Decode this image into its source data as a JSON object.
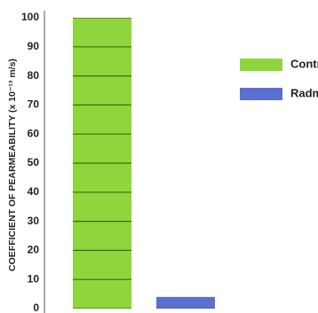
{
  "chart_data": {
    "type": "bar",
    "y_axis_label": "COEFFICIENT OF PEARMEABILITY (x 10⁻¹³ m/s)",
    "categories": [
      "Control",
      "Radmyx"
    ],
    "values": [
      100,
      4
    ],
    "colors": [
      "#8fd63c",
      "#5a6fd0"
    ],
    "ylim": [
      0,
      100
    ],
    "yticks": [
      0,
      10,
      20,
      30,
      40,
      50,
      60,
      70,
      80,
      90,
      100
    ],
    "grid": true,
    "legend": "right"
  }
}
